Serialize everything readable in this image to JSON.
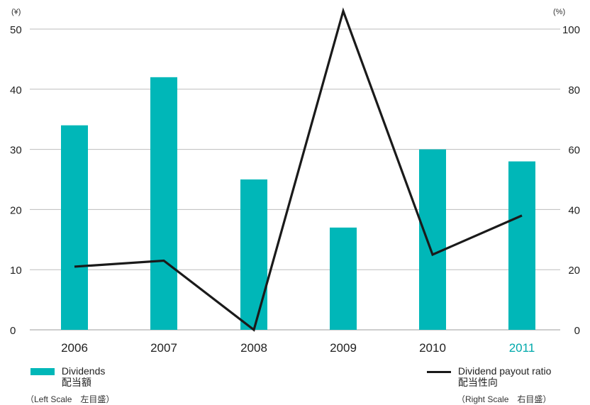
{
  "chart_data": {
    "type": "bar",
    "categories": [
      "2006",
      "2007",
      "2008",
      "2009",
      "2010",
      "2011"
    ],
    "highlight_category": "2011",
    "series": [
      {
        "name": "Dividends",
        "name_jp": "配当額",
        "type": "bar",
        "axis": "left",
        "values": [
          34,
          42,
          25,
          17,
          30,
          28
        ],
        "color": "#00b7b8"
      },
      {
        "name": "Dividend payout ratio",
        "name_jp": "配当性向",
        "type": "line",
        "axis": "right",
        "values": [
          21,
          23,
          0,
          106,
          25,
          38
        ],
        "color": "#1a1a1a"
      }
    ],
    "left_axis": {
      "unit": "(¥)",
      "ylim": [
        0,
        50
      ],
      "ticks": [
        "0",
        "10",
        "20",
        "30",
        "40",
        "50"
      ]
    },
    "right_axis": {
      "unit": "(%)",
      "ylim": [
        0,
        100
      ],
      "ticks": [
        "0",
        "20",
        "40",
        "60",
        "80",
        "100"
      ]
    },
    "grid": true,
    "legend_placement": "bottom",
    "left_scale_note": "（Left Scale　左目盛）",
    "right_scale_note": "（Right Scale　右目盛）",
    "highlight_color": "#00a9ab"
  }
}
